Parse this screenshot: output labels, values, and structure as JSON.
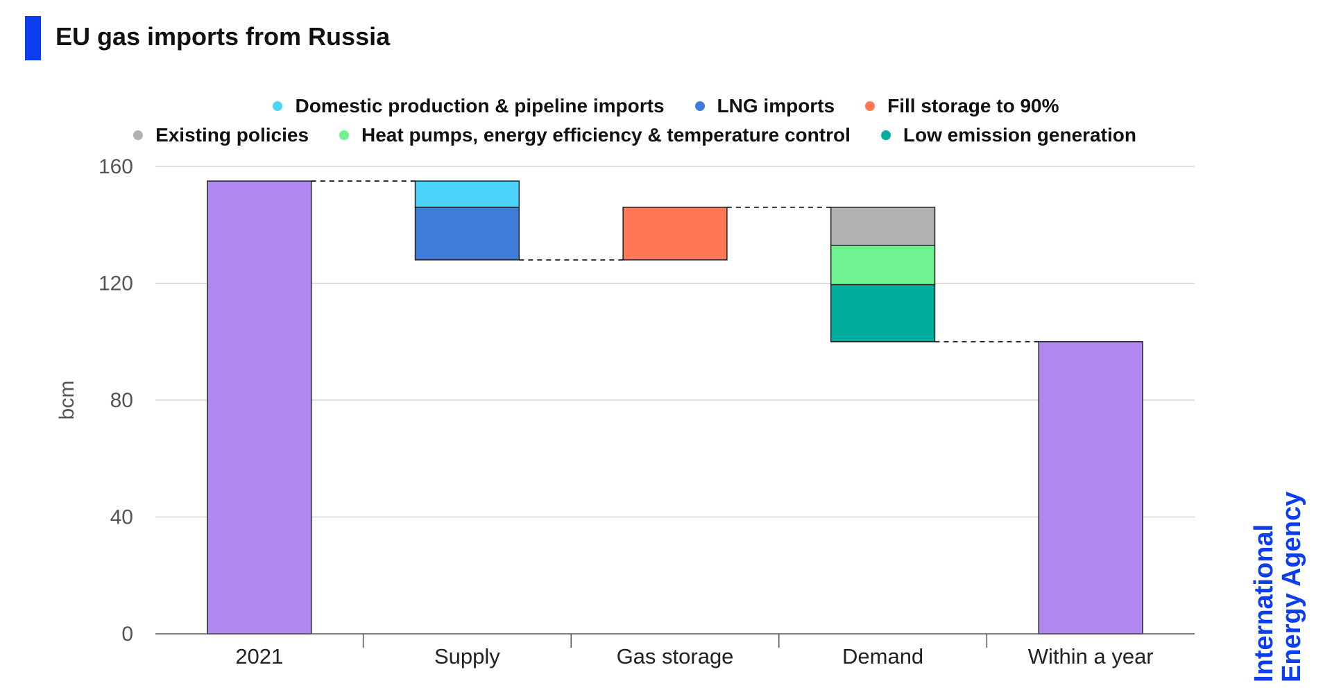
{
  "title": "EU gas imports from Russia",
  "brand": {
    "line1": "International",
    "line2": "Energy Agency"
  },
  "legend": [
    {
      "label": "Domestic production & pipeline imports",
      "color": "#4dd4fb"
    },
    {
      "label": "LNG imports",
      "color": "#3f7bd8"
    },
    {
      "label": "Fill storage to 90%",
      "color": "#ff7754"
    },
    {
      "label": "Existing policies",
      "color": "#b2b2b2"
    },
    {
      "label": "Heat pumps, energy efficiency & temperature control",
      "color": "#6ff291"
    },
    {
      "label": "Low emission generation",
      "color": "#00ae9f"
    }
  ],
  "chart_data": {
    "type": "bar",
    "subtype": "waterfall",
    "title": "EU gas imports from Russia",
    "ylabel": "bcm",
    "xlabel": "",
    "ylim": [
      0,
      160
    ],
    "yticks": [
      0,
      40,
      80,
      120,
      160
    ],
    "grid": true,
    "legend_position": "top",
    "categories": [
      "2021",
      "Supply",
      "Gas storage",
      "Demand",
      "Within a year"
    ],
    "totals": [
      {
        "category": "2021",
        "value": 155,
        "color": "#b187f0"
      },
      {
        "category": "Within a year",
        "value": 100,
        "color": "#b187f0"
      }
    ],
    "series": [
      {
        "name": "Domestic production & pipeline imports",
        "category": "Supply",
        "value": -9,
        "color": "#4dd4fb"
      },
      {
        "name": "LNG imports",
        "category": "Supply",
        "value": -18,
        "color": "#3f7bd8"
      },
      {
        "name": "Fill storage to 90%",
        "category": "Gas storage",
        "value": 18,
        "color": "#ff7754"
      },
      {
        "name": "Existing policies",
        "category": "Demand",
        "value": -13,
        "color": "#b2b2b2"
      },
      {
        "name": "Heat pumps, energy efficiency & temperature control",
        "category": "Demand",
        "value": -13.5,
        "color": "#6ff291"
      },
      {
        "name": "Low emission generation",
        "category": "Demand",
        "value": -19.5,
        "color": "#00ae9f"
      }
    ]
  }
}
